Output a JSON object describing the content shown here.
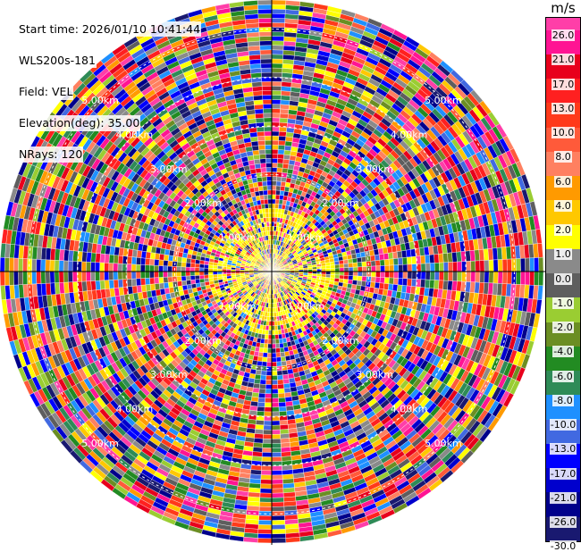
{
  "header": {
    "start_time": "Start time: 2026/01/10 10:41:44",
    "instrument": "WLS200s-181",
    "field": "Field: VEL",
    "elevation": "Elevation(deg): 35.00",
    "nrays": "NRays: 120"
  },
  "colorbar": {
    "unit": "m/s",
    "ticks": [
      "26.0",
      "21.0",
      "17.0",
      "13.0",
      "10.0",
      "8.0",
      "6.0",
      "4.0",
      "2.0",
      "1.0",
      "0.0",
      "-1.0",
      "-2.0",
      "-4.0",
      "-6.0",
      "-8.0",
      "-10.0",
      "-13.0",
      "-17.0",
      "-21.0",
      "-26.0",
      "-30.0"
    ],
    "colors": [
      "#ff3ea8",
      "#ff1493",
      "#e8001c",
      "#ff2020",
      "#ff3a1a",
      "#ff5a3a",
      "#ff8060",
      "#ff9a00",
      "#ffc800",
      "#ffff00",
      "#8a8a8a",
      "#5e5e5e",
      "#9acd32",
      "#6b8e23",
      "#228b22",
      "#2e8b57",
      "#1e90ff",
      "#4169e1",
      "#0000ff",
      "#0000cd",
      "#00008b",
      "#191970"
    ]
  },
  "chart_data": {
    "type": "heatmap",
    "subtype": "ppi-polar",
    "field": "VEL",
    "units": "m/s",
    "n_rays": 120,
    "elevation_deg": 35.0,
    "range_rings_km": [
      1.0,
      2.0,
      3.0,
      4.0,
      5.0
    ],
    "ring_labels": [
      "1.00km",
      "2.00km",
      "3.00km",
      "4.00km",
      "5.00km"
    ],
    "color_range": [
      -30.0,
      26.0
    ],
    "grid": true
  }
}
